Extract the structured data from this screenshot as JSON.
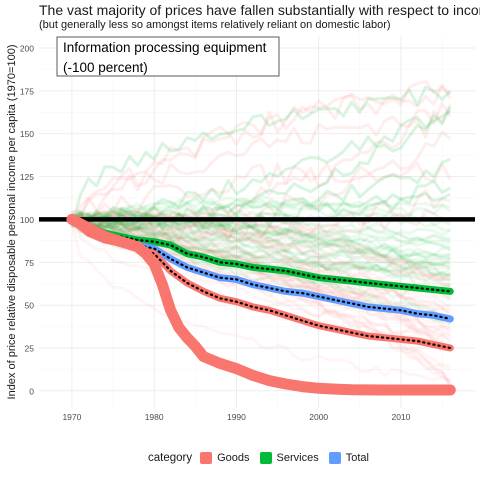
{
  "chart_data": {
    "type": "line",
    "title": "The vast majority of prices have fallen substantially with respect to income",
    "subtitle": "(but generally less so amongst items relatively reliant on domestic labor)",
    "xlabel": "",
    "ylabel": "Index of price relative disposable personal income per capita (1970=100)",
    "xlim": [
      1966,
      2019
    ],
    "ylim": [
      -10,
      207
    ],
    "x_ticks": [
      1970,
      1980,
      1990,
      2000,
      2010
    ],
    "y_ticks": [
      0,
      25,
      50,
      75,
      100,
      125,
      150,
      175,
      200
    ],
    "grid": true,
    "reference_line": {
      "y": 100
    },
    "highlight_label": {
      "line1": "Information processing equipment",
      "line2": "(-100 percent)"
    },
    "legend": {
      "title": "category",
      "position": "bottom",
      "entries": [
        {
          "name": "Goods",
          "color": "#F8766D"
        },
        {
          "name": "Services",
          "color": "#00BA38"
        },
        {
          "name": "Total",
          "color": "#619CFF"
        }
      ]
    },
    "colors": {
      "Goods": "#F8766D",
      "Services": "#00BA38",
      "Total": "#619CFF"
    },
    "series": [
      {
        "name": "Services",
        "style": "aggregate",
        "x": [
          1970,
          1972,
          1974,
          1976,
          1978,
          1980,
          1982,
          1984,
          1986,
          1988,
          1990,
          1992,
          1994,
          1996,
          1998,
          2000,
          2002,
          2004,
          2006,
          2008,
          2010,
          2012,
          2014,
          2016
        ],
        "y": [
          100,
          96,
          92,
          90,
          88,
          87,
          85,
          80,
          78,
          75,
          74,
          72,
          71,
          70,
          68,
          66,
          65,
          64,
          63,
          62,
          61,
          60,
          59,
          58
        ]
      },
      {
        "name": "Total",
        "style": "aggregate",
        "x": [
          1970,
          1972,
          1974,
          1976,
          1978,
          1980,
          1982,
          1984,
          1986,
          1988,
          1990,
          1992,
          1994,
          1996,
          1998,
          2000,
          2002,
          2004,
          2006,
          2008,
          2010,
          2012,
          2014,
          2016
        ],
        "y": [
          100,
          94,
          90,
          88,
          85,
          83,
          77,
          72,
          69,
          66,
          65,
          62,
          60,
          58,
          57,
          55,
          53,
          51,
          49,
          48,
          47,
          45,
          44,
          42
        ]
      },
      {
        "name": "Goods",
        "style": "aggregate",
        "x": [
          1970,
          1972,
          1974,
          1976,
          1978,
          1980,
          1982,
          1984,
          1986,
          1988,
          1990,
          1992,
          1994,
          1996,
          1998,
          2000,
          2002,
          2004,
          2006,
          2008,
          2010,
          2012,
          2014,
          2016
        ],
        "y": [
          100,
          92,
          88,
          86,
          83,
          80,
          70,
          63,
          58,
          54,
          52,
          49,
          47,
          44,
          41,
          38,
          36,
          34,
          32,
          31,
          30,
          29,
          27,
          25
        ]
      },
      {
        "name": "Information processing equipment",
        "style": "highlight",
        "x": [
          1970,
          1972,
          1974,
          1976,
          1978,
          1979,
          1980,
          1981,
          1982,
          1983,
          1984,
          1985,
          1986,
          1988,
          1990,
          1992,
          1994,
          1996,
          1998,
          2000,
          2002,
          2004,
          2008,
          2012,
          2016
        ],
        "y": [
          100,
          95,
          90,
          87,
          84,
          80,
          74,
          62,
          47,
          37,
          31,
          26,
          20,
          16,
          13,
          9,
          6,
          4,
          2.5,
          1.5,
          1,
          0.7,
          0.5,
          0.5,
          0.5
        ]
      }
    ]
  }
}
